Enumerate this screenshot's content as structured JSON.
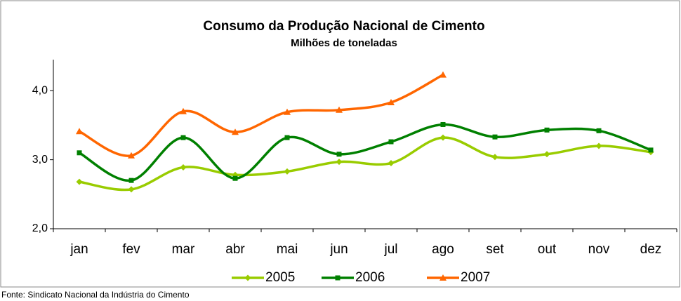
{
  "chart_data": {
    "type": "line",
    "title": "Consumo da Produção Nacional de Cimento",
    "subtitle": "Milhões de toneladas",
    "source": "Fonte: Sindicato Nacional da Indústria do Cimento",
    "categories": [
      "jan",
      "fev",
      "mar",
      "abr",
      "mai",
      "jun",
      "jul",
      "ago",
      "set",
      "out",
      "nov",
      "dez"
    ],
    "series": [
      {
        "name": "2005",
        "color": "#99cc00",
        "marker": "diamond",
        "values": [
          2.68,
          2.57,
          2.89,
          2.78,
          2.83,
          2.97,
          2.95,
          3.32,
          3.04,
          3.08,
          3.2,
          3.11
        ]
      },
      {
        "name": "2006",
        "color": "#008000",
        "marker": "square",
        "values": [
          3.1,
          2.7,
          3.32,
          2.73,
          3.32,
          3.08,
          3.26,
          3.51,
          3.33,
          3.43,
          3.42,
          3.14
        ]
      },
      {
        "name": "2007",
        "color": "#ff6600",
        "marker": "triangle",
        "values": [
          3.41,
          3.06,
          3.7,
          3.4,
          3.69,
          3.72,
          3.83,
          4.23,
          null,
          null,
          null,
          null
        ]
      }
    ],
    "ylim": [
      2,
      4.45
    ],
    "yticks": [
      {
        "value": 2,
        "label": "2,0"
      },
      {
        "value": 3,
        "label": "3,0"
      },
      {
        "value": 4,
        "label": "4,0"
      }
    ],
    "legend": "bottom"
  }
}
